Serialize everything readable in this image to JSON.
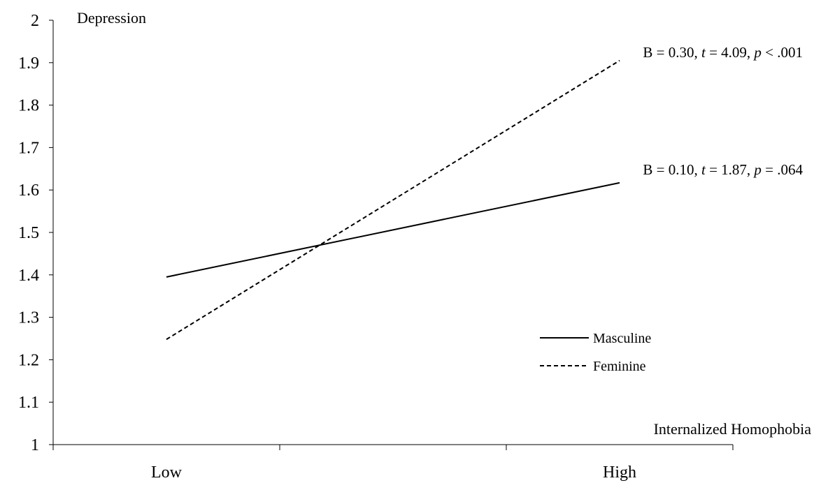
{
  "chart_data": {
    "type": "line",
    "categories": [
      "Low",
      "High"
    ],
    "ylim": [
      1,
      2
    ],
    "yticks": [
      1,
      1.1,
      1.2,
      1.3,
      1.4,
      1.5,
      1.6,
      1.7,
      1.8,
      1.9,
      2
    ],
    "ylabel": "Depression",
    "xlabel": "Internalized Homophobia",
    "grid": false,
    "legend": "bottom-right",
    "series": [
      {
        "name": "Masculine",
        "style": "solid",
        "values": [
          1.395,
          1.617
        ]
      },
      {
        "name": "Feminine",
        "style": "dashed",
        "values": [
          1.248,
          1.905
        ]
      }
    ],
    "annotations": [
      {
        "series": "Feminine",
        "parts": [
          {
            "text": "B = 0.30, ",
            "italic": false
          },
          {
            "text": "t",
            "italic": true
          },
          {
            "text": " = 4.09, ",
            "italic": false
          },
          {
            "text": "p",
            "italic": true
          },
          {
            "text": " < .001",
            "italic": false
          }
        ]
      },
      {
        "series": "Masculine",
        "parts": [
          {
            "text": "B = 0.10, ",
            "italic": false
          },
          {
            "text": "t",
            "italic": true
          },
          {
            "text": " = 1.87, ",
            "italic": false
          },
          {
            "text": "p",
            "italic": true
          },
          {
            "text": " = .064",
            "italic": false
          }
        ]
      }
    ]
  }
}
